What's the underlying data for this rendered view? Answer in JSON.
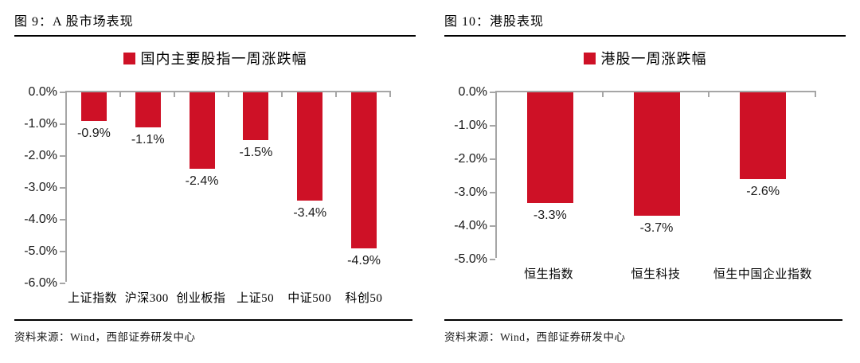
{
  "colors": {
    "bar_red": "#ce1126",
    "axis_gray": "#a6a6a6",
    "rule_black": "#000000"
  },
  "panels": [
    {
      "figure_label": "图 9：A 股市场表现",
      "source": "资料来源：Wind，西部证券研发中心"
    },
    {
      "figure_label": "图 10：港股表现",
      "source": "资料来源：Wind，西部证券研发中心"
    }
  ],
  "chart_data": [
    {
      "type": "bar",
      "title": "国内主要股指一周涨跌幅",
      "legend": [
        "国内主要股指一周涨跌幅"
      ],
      "legend_position": "top-center",
      "categories": [
        "上证指数",
        "沪深300",
        "创业板指",
        "上证50",
        "中证500",
        "科创50"
      ],
      "values": [
        -0.9,
        -1.1,
        -2.4,
        -1.5,
        -3.4,
        -4.9
      ],
      "data_labels": [
        "-0.9%",
        "-1.1%",
        "-2.4%",
        "-1.5%",
        "-3.4%",
        "-4.9%"
      ],
      "xlabel": "",
      "ylabel": "",
      "ylim": [
        -6.0,
        0.0
      ],
      "ytick_step": 1.0,
      "ytick_format": "percent_one_decimal",
      "grid": false,
      "bar_color": "#ce1126"
    },
    {
      "type": "bar",
      "title": "港股一周涨跌幅",
      "legend": [
        "港股一周涨跌幅"
      ],
      "legend_position": "top-center",
      "categories": [
        "恒生指数",
        "恒生科技",
        "恒生中国企业指数"
      ],
      "values": [
        -3.3,
        -3.7,
        -2.6
      ],
      "data_labels": [
        "-3.3%",
        "-3.7%",
        "-2.6%"
      ],
      "xlabel": "",
      "ylabel": "",
      "ylim": [
        -5.0,
        0.0
      ],
      "ytick_step": 1.0,
      "ytick_format": "percent_one_decimal",
      "grid": false,
      "bar_color": "#ce1126"
    }
  ]
}
